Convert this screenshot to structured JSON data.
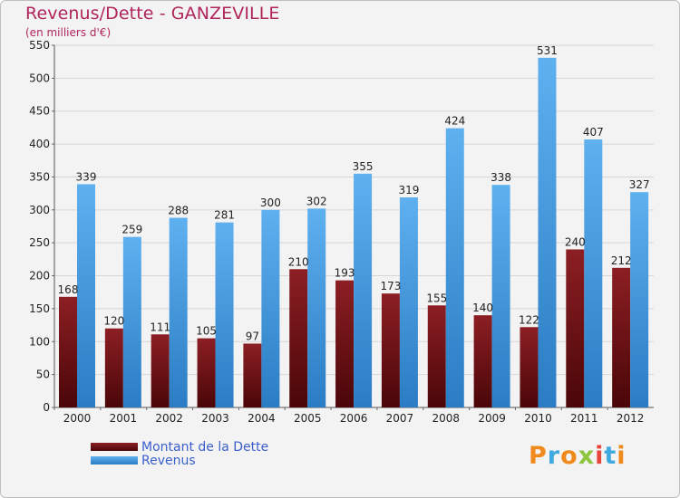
{
  "title": "Revenus/Dette - GANZEVILLE",
  "subtitle": "(en milliers d'€)",
  "chart_data": {
    "type": "bar",
    "categories": [
      "2000",
      "2001",
      "2002",
      "2003",
      "2004",
      "2005",
      "2006",
      "2007",
      "2008",
      "2009",
      "2010",
      "2011",
      "2012"
    ],
    "series": [
      {
        "name": "Montant de la Dette",
        "color": "#7a1216",
        "values": [
          168,
          120,
          111,
          105,
          97,
          210,
          193,
          173,
          155,
          140,
          122,
          240,
          212
        ]
      },
      {
        "name": "Revenus",
        "color": "#3c92dc",
        "values": [
          339,
          259,
          288,
          281,
          300,
          302,
          355,
          319,
          424,
          338,
          531,
          407,
          327
        ]
      }
    ],
    "ylim": [
      0,
      550
    ],
    "yticks": [
      0,
      50,
      100,
      150,
      200,
      250,
      300,
      350,
      400,
      450,
      500,
      550
    ],
    "grid": true,
    "legend": "bottom-left"
  },
  "legend": {
    "items": [
      {
        "label": "Montant de la Dette",
        "color": "#7a1216"
      },
      {
        "label": "Revenus",
        "color": "#3c92dc"
      }
    ]
  },
  "logo": {
    "text": "Proxiti",
    "colors": [
      "#f08a1c",
      "#3fa9e0",
      "#f08a1c",
      "#8dc63f",
      "#e8463c",
      "#3fa9e0",
      "#f08a1c"
    ]
  }
}
